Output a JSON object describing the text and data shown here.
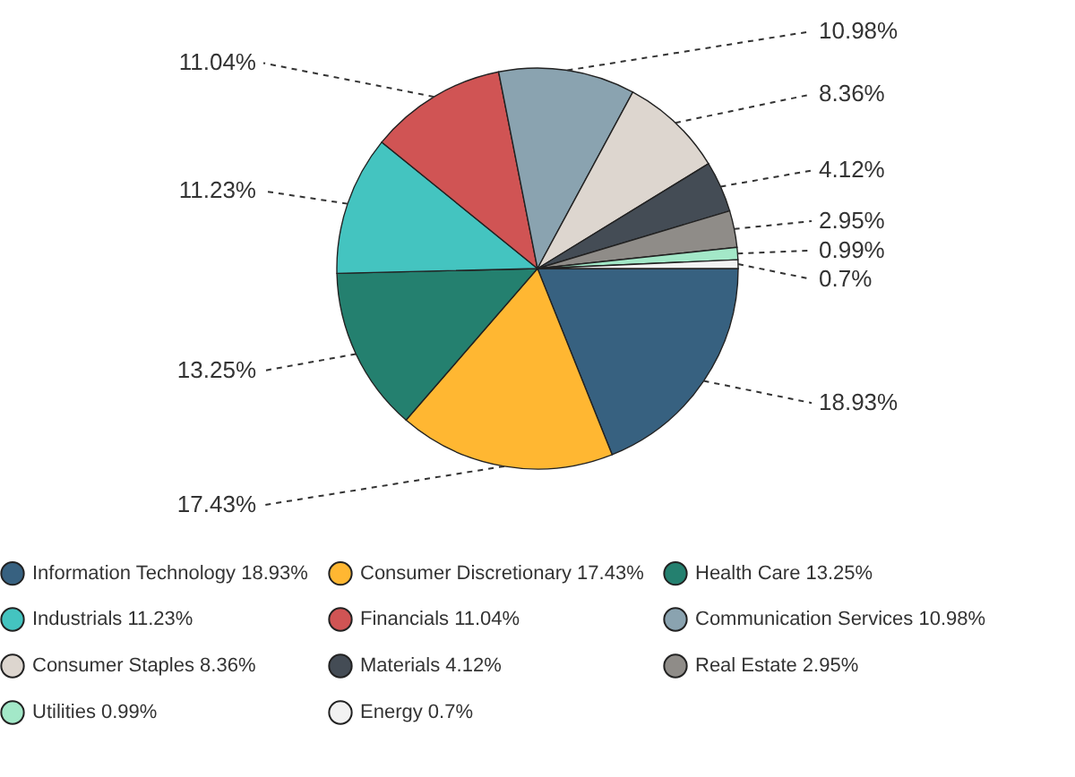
{
  "chart_data": {
    "type": "pie",
    "categories": [
      "Information Technology",
      "Consumer Discretionary",
      "Health Care",
      "Industrials",
      "Financials",
      "Communication Services",
      "Consumer Staples",
      "Materials",
      "Real Estate",
      "Utilities",
      "Energy"
    ],
    "values": [
      18.93,
      17.43,
      13.25,
      11.23,
      11.04,
      10.98,
      8.36,
      4.12,
      2.95,
      0.99,
      0.7
    ],
    "value_labels": [
      "18.93%",
      "17.43%",
      "13.25%",
      "11.23%",
      "11.04%",
      "10.98%",
      "8.36%",
      "4.12%",
      "2.95%",
      "0.99%",
      "0.7%"
    ],
    "colors": [
      "#376180",
      "#ffb732",
      "#24806f",
      "#44c4c0",
      "#d05454",
      "#8aa3b0",
      "#ddd6cf",
      "#444c55",
      "#8f8c88",
      "#a3e8c8",
      "#f2f2f2"
    ],
    "legend": "bottom"
  }
}
